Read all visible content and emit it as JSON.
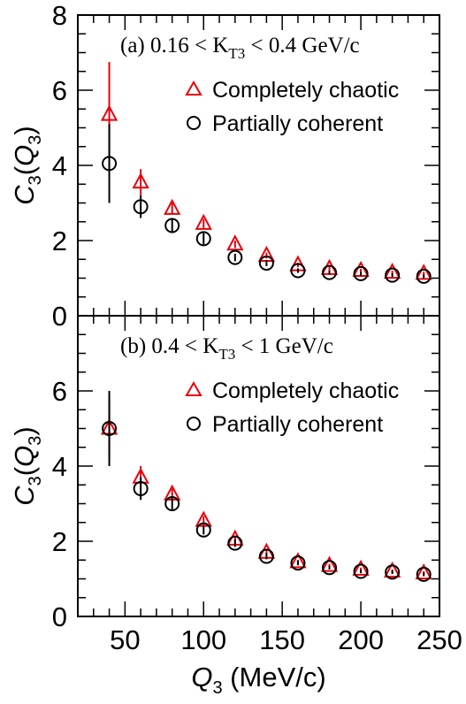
{
  "chart_data": [
    {
      "type": "scatter",
      "annotation_prefix": "(a)",
      "annotation_range": "0.16 < K",
      "annotation_sub": "T3",
      "annotation_suffix": " < 0.4 GeV/c",
      "ylabel_main": "C",
      "ylabel_sub": "3",
      "ylabel_paren": "(Q",
      "ylabel_paren_sub": "3",
      "ylabel_close": ")",
      "ylim": [
        0,
        8
      ],
      "yticks": [
        0,
        2,
        4,
        6,
        8
      ],
      "legend_placement": "top-right",
      "series": [
        {
          "name": "Completely chaotic",
          "marker": "triangle",
          "color": "#e8000b",
          "x": [
            40,
            60,
            80,
            100,
            120,
            140,
            160,
            180,
            200,
            220,
            240
          ],
          "y": [
            5.35,
            3.55,
            2.85,
            2.45,
            1.9,
            1.6,
            1.35,
            1.25,
            1.2,
            1.15,
            1.12
          ],
          "err": [
            1.4,
            0.35,
            0.15,
            0.12,
            0.1,
            0.08,
            0.06,
            0.05,
            0.05,
            0.05,
            0.05
          ]
        },
        {
          "name": "Partially coherent",
          "marker": "circle",
          "color": "#000000",
          "x": [
            40,
            60,
            80,
            100,
            120,
            140,
            160,
            180,
            200,
            220,
            240
          ],
          "y": [
            4.05,
            2.9,
            2.4,
            2.05,
            1.55,
            1.4,
            1.2,
            1.15,
            1.12,
            1.08,
            1.05
          ],
          "err": [
            1.05,
            0.3,
            0.18,
            0.15,
            0.1,
            0.08,
            0.06,
            0.05,
            0.05,
            0.05,
            0.05
          ]
        }
      ]
    },
    {
      "type": "scatter",
      "annotation_prefix": "(b)",
      "annotation_range": "0.4 < K",
      "annotation_sub": "T3",
      "annotation_suffix": " < 1 GeV/c",
      "ylabel_main": "C",
      "ylabel_sub": "3",
      "ylabel_paren": "(Q",
      "ylabel_paren_sub": "3",
      "ylabel_close": ")",
      "ylim": [
        0,
        8
      ],
      "yticks": [
        0,
        2,
        4,
        6
      ],
      "legend_placement": "top-right",
      "series": [
        {
          "name": "Completely chaotic",
          "marker": "triangle",
          "color": "#e8000b",
          "x": [
            40,
            60,
            80,
            100,
            120,
            140,
            160,
            180,
            200,
            220,
            240
          ],
          "y": [
            5.0,
            3.7,
            3.25,
            2.55,
            2.05,
            1.7,
            1.45,
            1.35,
            1.25,
            1.2,
            1.15
          ],
          "err": [
            0.8,
            0.3,
            0.15,
            0.12,
            0.1,
            0.08,
            0.06,
            0.05,
            0.05,
            0.05,
            0.05
          ]
        },
        {
          "name": "Partially coherent",
          "marker": "circle",
          "color": "#000000",
          "x": [
            40,
            60,
            80,
            100,
            120,
            140,
            160,
            180,
            200,
            220,
            240
          ],
          "y": [
            5.0,
            3.4,
            3.0,
            2.3,
            1.95,
            1.6,
            1.42,
            1.3,
            1.2,
            1.18,
            1.12
          ],
          "err": [
            1.0,
            0.3,
            0.15,
            0.12,
            0.1,
            0.08,
            0.06,
            0.05,
            0.05,
            0.05,
            0.05
          ]
        }
      ]
    }
  ],
  "x_axis": {
    "label_main": "Q",
    "label_sub": "3",
    "label_unit": " (MeV/c)",
    "xlim": [
      20,
      250
    ],
    "xticks": [
      50,
      100,
      150,
      200,
      250
    ]
  }
}
